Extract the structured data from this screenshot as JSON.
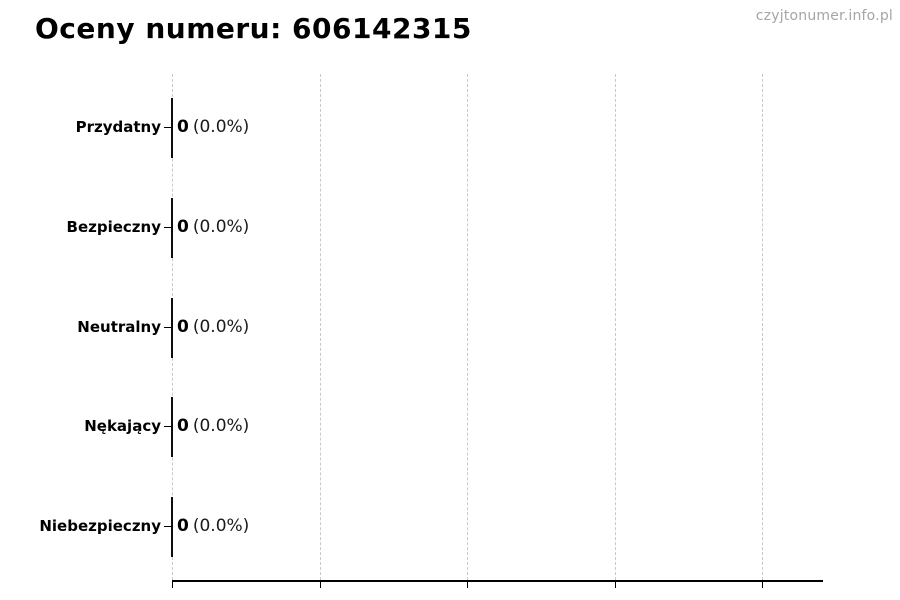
{
  "page": {
    "watermark": "czyjtonumer.info.pl"
  },
  "chart_data": {
    "type": "bar",
    "orientation": "horizontal",
    "title": "Oceny numeru: 606142315",
    "categories": [
      "Przydatny",
      "Bezpieczny",
      "Neutralny",
      "Nękający",
      "Niebezpieczny"
    ],
    "values": [
      0,
      0,
      0,
      0,
      0
    ],
    "percent_labels": [
      "(0.0%)",
      "(0.0%)",
      "(0.0%)",
      "(0.0%)",
      "(0.0%)"
    ],
    "xlabel": "",
    "ylabel": "",
    "x_tick_labels": [],
    "x_tick_count": 5,
    "grid": "vertical dashed gridlines at each x tick, no tick labels",
    "legend": "none",
    "bar_note": "all bars have zero length, rendered as thin black vertical edge lines at x=0"
  },
  "colors": {
    "background": "#ffffff",
    "title": "#000000",
    "category_label": "#000000",
    "value_text": "#1a1a1a",
    "gridline": "#c9c9c9",
    "axis": "#000000",
    "bar_edge": "#0d0d0d",
    "watermark": "#a5a5a5"
  }
}
